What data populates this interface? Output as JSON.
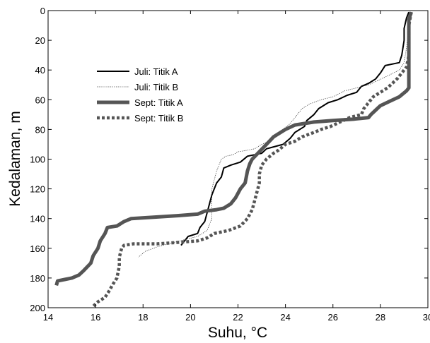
{
  "chart_data": {
    "type": "line",
    "xlabel": "Suhu, °C",
    "ylabel": "Kedalaman, m",
    "xlim": [
      14,
      30
    ],
    "ylim": [
      200,
      0
    ],
    "y_inverted": true,
    "x_ticks": [
      14,
      16,
      18,
      20,
      22,
      24,
      26,
      28,
      30
    ],
    "y_ticks": [
      0,
      20,
      40,
      60,
      80,
      100,
      120,
      140,
      160,
      180,
      200
    ],
    "grid": false,
    "legend_position": "upper-left",
    "series": [
      {
        "name": "Juli: Titik A",
        "color": "#000000",
        "style": "solid-thin",
        "points": [
          [
            29.2,
            1
          ],
          [
            29.1,
            5
          ],
          [
            29.0,
            12
          ],
          [
            29.0,
            20
          ],
          [
            28.9,
            30
          ],
          [
            28.8,
            35
          ],
          [
            28.2,
            37
          ],
          [
            28.0,
            42
          ],
          [
            27.8,
            46
          ],
          [
            27.5,
            49
          ],
          [
            27.2,
            51
          ],
          [
            27.0,
            55
          ],
          [
            26.6,
            57
          ],
          [
            26.2,
            60
          ],
          [
            25.8,
            62
          ],
          [
            25.4,
            66
          ],
          [
            25.2,
            70
          ],
          [
            24.9,
            74
          ],
          [
            24.8,
            78
          ],
          [
            24.4,
            82
          ],
          [
            24.2,
            86
          ],
          [
            23.9,
            90
          ],
          [
            23.2,
            93
          ],
          [
            23.0,
            96
          ],
          [
            22.4,
            98
          ],
          [
            22.1,
            102
          ],
          [
            21.7,
            104
          ],
          [
            21.4,
            106
          ],
          [
            21.3,
            112
          ],
          [
            21.1,
            116
          ],
          [
            21.0,
            120
          ],
          [
            20.9,
            124
          ],
          [
            20.8,
            130
          ],
          [
            20.7,
            136
          ],
          [
            20.6,
            142
          ],
          [
            20.4,
            146
          ],
          [
            20.3,
            150
          ],
          [
            19.9,
            152
          ],
          [
            19.7,
            156
          ],
          [
            19.6,
            158
          ]
        ]
      },
      {
        "name": "Juli: Titik B",
        "color": "#333333",
        "style": "dotted-thin",
        "points": [
          [
            29.3,
            1
          ],
          [
            29.2,
            10
          ],
          [
            29.1,
            25
          ],
          [
            29.0,
            35
          ],
          [
            28.8,
            40
          ],
          [
            28.3,
            44
          ],
          [
            27.5,
            50
          ],
          [
            27.0,
            52
          ],
          [
            26.5,
            54
          ],
          [
            26.0,
            58
          ],
          [
            25.5,
            60
          ],
          [
            25.0,
            63
          ],
          [
            24.7,
            66
          ],
          [
            24.4,
            72
          ],
          [
            24.2,
            76
          ],
          [
            23.9,
            80
          ],
          [
            23.6,
            85
          ],
          [
            23.3,
            88
          ],
          [
            23.0,
            90
          ],
          [
            22.7,
            93
          ],
          [
            22.4,
            94
          ],
          [
            22.0,
            95
          ],
          [
            21.8,
            97
          ],
          [
            21.5,
            98
          ],
          [
            21.3,
            100
          ],
          [
            21.1,
            108
          ],
          [
            21.0,
            114
          ],
          [
            20.9,
            120
          ],
          [
            20.9,
            126
          ],
          [
            20.9,
            134
          ],
          [
            20.9,
            140
          ],
          [
            20.8,
            144
          ],
          [
            20.7,
            148
          ],
          [
            20.3,
            152
          ],
          [
            19.8,
            154
          ],
          [
            19.3,
            156
          ],
          [
            18.6,
            159
          ],
          [
            18.1,
            162
          ],
          [
            17.8,
            166
          ]
        ]
      },
      {
        "name": "Sept: Titik A",
        "color": "#555555",
        "style": "solid-thick",
        "points": [
          [
            29.3,
            1
          ],
          [
            29.2,
            6
          ],
          [
            29.2,
            20
          ],
          [
            29.2,
            35
          ],
          [
            29.2,
            45
          ],
          [
            29.2,
            52
          ],
          [
            29.1,
            54
          ],
          [
            28.8,
            58
          ],
          [
            28.4,
            61
          ],
          [
            28.0,
            64
          ],
          [
            27.8,
            67
          ],
          [
            27.6,
            70
          ],
          [
            27.5,
            72
          ],
          [
            26.9,
            73
          ],
          [
            26.0,
            74
          ],
          [
            25.2,
            75
          ],
          [
            24.4,
            77
          ],
          [
            24.0,
            80
          ],
          [
            23.5,
            85
          ],
          [
            23.2,
            90
          ],
          [
            22.9,
            95
          ],
          [
            22.6,
            100
          ],
          [
            22.5,
            103
          ],
          [
            22.4,
            108
          ],
          [
            22.3,
            116
          ],
          [
            22.1,
            120
          ],
          [
            21.9,
            126
          ],
          [
            21.7,
            130
          ],
          [
            21.4,
            133
          ],
          [
            21.1,
            134
          ],
          [
            20.6,
            135
          ],
          [
            20.3,
            137
          ],
          [
            19.5,
            138
          ],
          [
            18.5,
            139
          ],
          [
            17.5,
            140
          ],
          [
            17.2,
            142
          ],
          [
            16.9,
            145
          ],
          [
            16.5,
            146
          ],
          [
            16.4,
            150
          ],
          [
            16.2,
            155
          ],
          [
            16.1,
            160
          ],
          [
            15.9,
            165
          ],
          [
            15.8,
            170
          ],
          [
            15.5,
            175
          ],
          [
            15.3,
            178
          ],
          [
            15.0,
            180
          ],
          [
            14.7,
            181
          ],
          [
            14.4,
            182
          ],
          [
            14.35,
            185
          ]
        ]
      },
      {
        "name": "Sept: Titik B",
        "color": "#555555",
        "style": "dotted-thick",
        "points": [
          [
            29.3,
            1
          ],
          [
            29.2,
            10
          ],
          [
            29.2,
            20
          ],
          [
            29.2,
            30
          ],
          [
            29.1,
            38
          ],
          [
            28.9,
            42
          ],
          [
            28.7,
            46
          ],
          [
            28.3,
            52
          ],
          [
            28.0,
            55
          ],
          [
            27.7,
            58
          ],
          [
            27.5,
            62
          ],
          [
            27.3,
            66
          ],
          [
            27.2,
            70
          ],
          [
            26.7,
            72
          ],
          [
            26.3,
            75
          ],
          [
            25.9,
            78
          ],
          [
            25.5,
            80
          ],
          [
            25.2,
            82
          ],
          [
            24.7,
            85
          ],
          [
            24.4,
            88
          ],
          [
            24.0,
            90
          ],
          [
            23.7,
            94
          ],
          [
            23.5,
            96
          ],
          [
            23.2,
            100
          ],
          [
            23.0,
            104
          ],
          [
            22.9,
            110
          ],
          [
            22.9,
            116
          ],
          [
            22.8,
            122
          ],
          [
            22.7,
            128
          ],
          [
            22.6,
            134
          ],
          [
            22.4,
            140
          ],
          [
            22.1,
            145
          ],
          [
            21.6,
            148
          ],
          [
            21.0,
            150
          ],
          [
            20.7,
            153
          ],
          [
            20.3,
            155
          ],
          [
            19.5,
            156
          ],
          [
            18.6,
            157
          ],
          [
            17.6,
            157
          ],
          [
            17.2,
            158
          ],
          [
            17.1,
            160
          ],
          [
            17.0,
            166
          ],
          [
            17.0,
            172
          ],
          [
            16.9,
            180
          ],
          [
            16.7,
            185
          ],
          [
            16.6,
            188
          ],
          [
            16.4,
            193
          ],
          [
            16.1,
            196
          ],
          [
            15.9,
            199
          ]
        ]
      }
    ]
  }
}
